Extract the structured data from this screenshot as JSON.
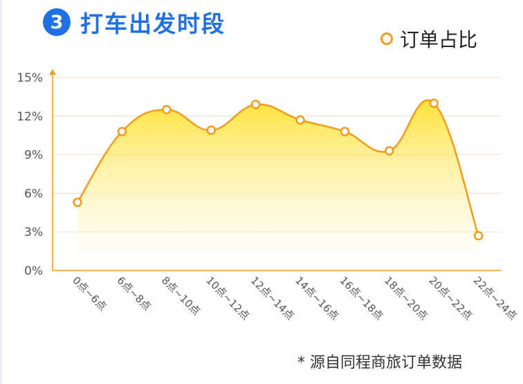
{
  "header": {
    "badge": "3",
    "title": "打车出发时段"
  },
  "footer": {
    "source": "* 源自同程商旅订单数据"
  },
  "colors": {
    "accent": "#f59a1b",
    "title": "#1f6fe5",
    "fill_top": "#ffe12e",
    "fill_bottom": "#fffbe6",
    "grid": "#f7dcc1"
  },
  "chart_data": {
    "type": "area",
    "title": "打车出发时段",
    "xlabel": "",
    "ylabel": "",
    "categories": [
      "0点~6点",
      "6点~8点",
      "8点~10点",
      "10点~12点",
      "12点~14点",
      "14点~16点",
      "16点~18点",
      "18点~20点",
      "20点~22点",
      "22点~24点"
    ],
    "series": [
      {
        "name": "订单占比",
        "values": [
          5.3,
          10.8,
          12.5,
          10.9,
          12.9,
          11.7,
          10.8,
          9.3,
          13.0,
          2.7
        ]
      }
    ],
    "yticks": [
      "0%",
      "3%",
      "6%",
      "9%",
      "12%",
      "15%"
    ],
    "ylim": [
      0,
      15
    ],
    "grid": true,
    "legend": "top-right"
  }
}
